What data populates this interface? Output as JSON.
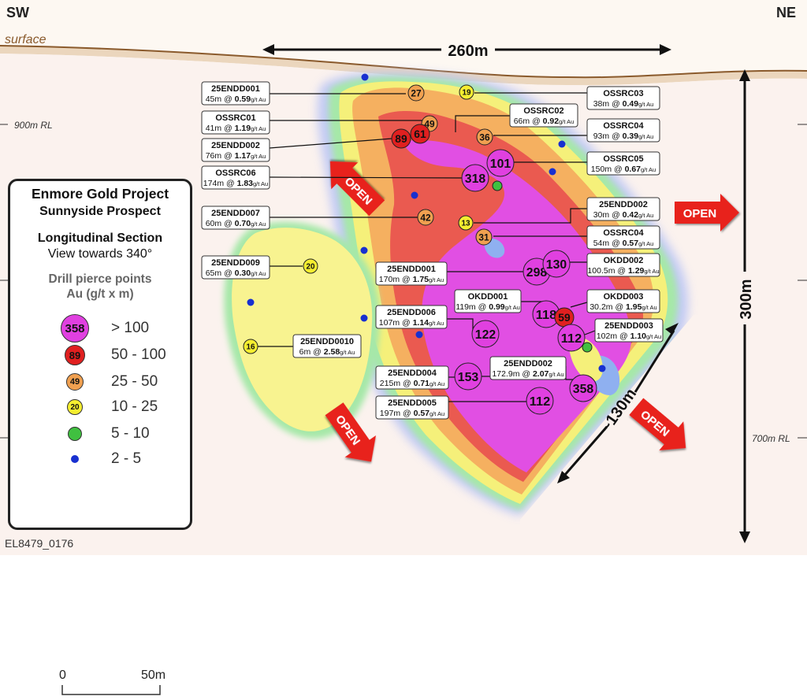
{
  "orientation": {
    "left": "SW",
    "right": "NE"
  },
  "surface_label": "surface",
  "rl_labels": {
    "upper": "900m RL",
    "lower": "700m RL"
  },
  "dimensions": {
    "width_label": "260m",
    "height_label": "300m",
    "diag_label": "~130m"
  },
  "open_label": "OPEN",
  "legend": {
    "title": "Enmore Gold Project",
    "subtitle": "Sunnyside Prospect",
    "section": "Longitudinal Section",
    "view": "View towards 340°",
    "drill_title": "Drill pierce points",
    "drill_units": "Au (g/t x m)",
    "classes": [
      {
        "sample": "358",
        "range": "> 100",
        "color": "#e040e0"
      },
      {
        "sample": "89",
        "range": "50 - 100",
        "color": "#e02020"
      },
      {
        "sample": "49",
        "range": "25 - 50",
        "color": "#f0a050"
      },
      {
        "sample": "20",
        "range": "10 - 25",
        "color": "#f5ee30"
      },
      {
        "sample": "",
        "range": "5 - 10",
        "color": "#40c040"
      },
      {
        "sample": "",
        "range": "2 - 5",
        "color": "#1830d0"
      }
    ],
    "scale": {
      "start": "0",
      "end": "50m"
    }
  },
  "caption": "EL8479_0176",
  "pierce_points": [
    {
      "v": "27",
      "cls": "orange"
    },
    {
      "v": "19",
      "cls": "yellow"
    },
    {
      "v": "49",
      "cls": "orange"
    },
    {
      "v": "89",
      "cls": "red"
    },
    {
      "v": "61",
      "cls": "red"
    },
    {
      "v": "36",
      "cls": "orange"
    },
    {
      "v": "101",
      "cls": "magenta"
    },
    {
      "v": "318",
      "cls": "magenta"
    },
    {
      "v": "42",
      "cls": "orange"
    },
    {
      "v": "13",
      "cls": "yellow"
    },
    {
      "v": "31",
      "cls": "orange"
    },
    {
      "v": "20",
      "cls": "yellow"
    },
    {
      "v": "298",
      "cls": "magenta"
    },
    {
      "v": "130",
      "cls": "magenta"
    },
    {
      "v": "118",
      "cls": "magenta"
    },
    {
      "v": "59",
      "cls": "red"
    },
    {
      "v": "122",
      "cls": "magenta"
    },
    {
      "v": "112",
      "cls": "magenta"
    },
    {
      "v": "16",
      "cls": "yellow"
    },
    {
      "v": "153",
      "cls": "magenta"
    },
    {
      "v": "358",
      "cls": "magenta"
    },
    {
      "v": "112",
      "cls": "magenta"
    }
  ],
  "drill_labels": [
    {
      "hole": "25ENDD001",
      "len": "45m",
      "grade": "0.59"
    },
    {
      "hole": "OSSRC01",
      "len": "41m",
      "grade": "1.19"
    },
    {
      "hole": "25ENDD002",
      "len": "76m",
      "grade": "1.17"
    },
    {
      "hole": "OSSRC06",
      "len": "174m",
      "grade": "1.83"
    },
    {
      "hole": "25ENDD007",
      "len": "60m",
      "grade": "0.70"
    },
    {
      "hole": "25ENDD009",
      "len": "65m",
      "grade": "0.30"
    },
    {
      "hole": "OSSRC03",
      "len": "38m",
      "grade": "0.49"
    },
    {
      "hole": "OSSRC02",
      "len": "66m",
      "grade": "0.92"
    },
    {
      "hole": "OSSRC04",
      "len": "93m",
      "grade": "0.39"
    },
    {
      "hole": "OSSRC05",
      "len": "150m",
      "grade": "0.67"
    },
    {
      "hole": "25ENDD002",
      "len": "30m",
      "grade": "0.42"
    },
    {
      "hole": "OSSRC04",
      "len": "54m",
      "grade": "0.57"
    },
    {
      "hole": "OKDD002",
      "len": "100.5m",
      "grade": "1.29"
    },
    {
      "hole": "25ENDD001",
      "len": "170m",
      "grade": "1.75"
    },
    {
      "hole": "OKDD001",
      "len": "119m",
      "grade": "0.99"
    },
    {
      "hole": "OKDD003",
      "len": "30.2m",
      "grade": "1.95"
    },
    {
      "hole": "25ENDD006",
      "len": "107m",
      "grade": "1.14"
    },
    {
      "hole": "25ENDD003",
      "len": "102m",
      "grade": "1.10"
    },
    {
      "hole": "25ENDD0010",
      "len": "6m",
      "grade": "2.58"
    },
    {
      "hole": "25ENDD002",
      "len": "172.9m",
      "grade": "2.07"
    },
    {
      "hole": "25ENDD004",
      "len": "215m",
      "grade": "0.71"
    },
    {
      "hole": "25ENDD005",
      "len": "197m",
      "grade": "0.57"
    }
  ],
  "grade_unit": "g/t Au"
}
